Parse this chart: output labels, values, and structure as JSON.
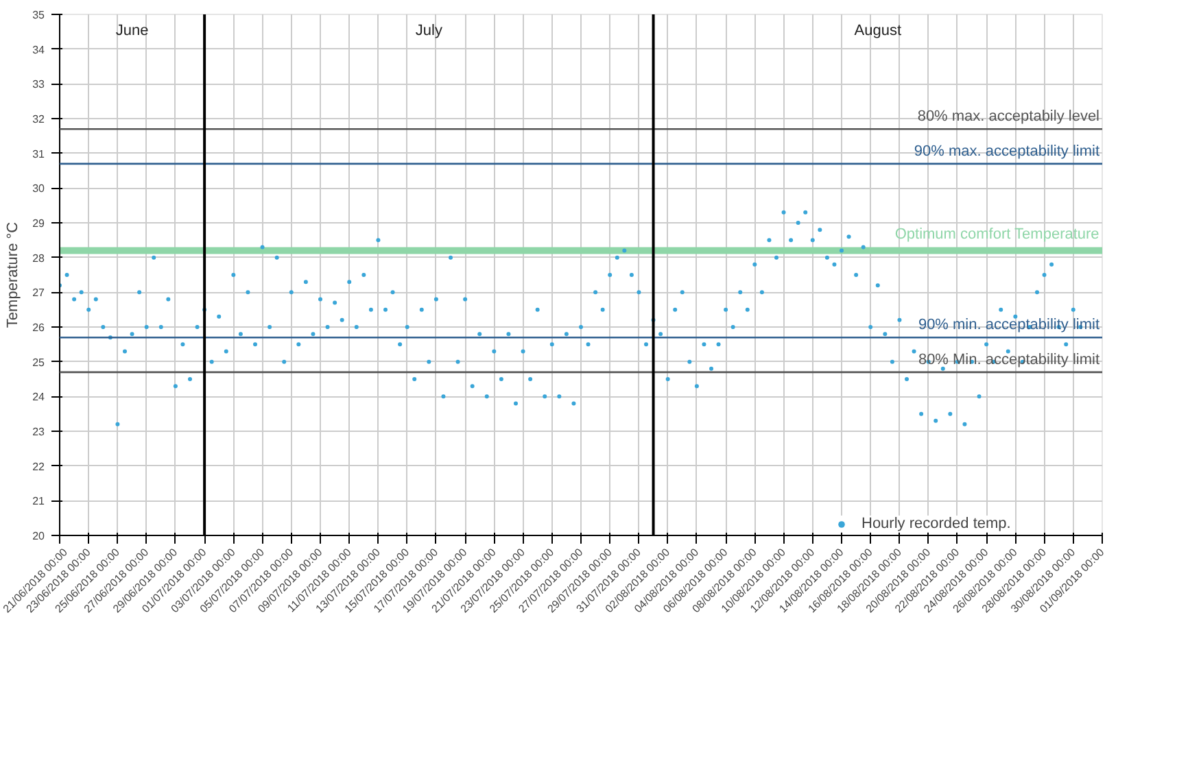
{
  "chart_data": {
    "type": "scatter",
    "ylabel": "Temperature °C",
    "xlim": [
      "2018-06-21",
      "2018-09-01"
    ],
    "ylim": [
      20,
      35
    ],
    "yticks": [
      20,
      21,
      22,
      23,
      24,
      25,
      26,
      27,
      28,
      29,
      30,
      31,
      32,
      33,
      34,
      35
    ],
    "xticks": [
      {
        "value": "2018-06-21",
        "label": "21/06/2018 00:00"
      },
      {
        "value": "2018-06-23",
        "label": "23/06/2018 00:00"
      },
      {
        "value": "2018-06-25",
        "label": "25/06/2018 00:00"
      },
      {
        "value": "2018-06-27",
        "label": "27/06/2018 00:00"
      },
      {
        "value": "2018-06-29",
        "label": "29/06/2018 00:00"
      },
      {
        "value": "2018-07-01",
        "label": "01/07/2018 00:00"
      },
      {
        "value": "2018-07-03",
        "label": "03/07/2018 00:00"
      },
      {
        "value": "2018-07-05",
        "label": "05/07/2018 00:00"
      },
      {
        "value": "2018-07-07",
        "label": "07/07/2018 00:00"
      },
      {
        "value": "2018-07-09",
        "label": "09/07/2018 00:00"
      },
      {
        "value": "2018-07-11",
        "label": "11/07/2018 00:00"
      },
      {
        "value": "2018-07-13",
        "label": "13/07/2018 00:00"
      },
      {
        "value": "2018-07-15",
        "label": "15/07/2018 00:00"
      },
      {
        "value": "2018-07-17",
        "label": "17/07/2018 00:00"
      },
      {
        "value": "2018-07-19",
        "label": "19/07/2018 00:00"
      },
      {
        "value": "2018-07-21",
        "label": "21/07/2018 00:00"
      },
      {
        "value": "2018-07-23",
        "label": "23/07/2018 00:00"
      },
      {
        "value": "2018-07-25",
        "label": "25/07/2018 00:00"
      },
      {
        "value": "2018-07-27",
        "label": "27/07/2018 00:00"
      },
      {
        "value": "2018-07-29",
        "label": "29/07/2018 00:00"
      },
      {
        "value": "2018-07-31",
        "label": "31/07/2018 00:00"
      },
      {
        "value": "2018-08-02",
        "label": "02/08/2018 00:00"
      },
      {
        "value": "2018-08-04",
        "label": "04/08/2018 00:00"
      },
      {
        "value": "2018-08-06",
        "label": "06/08/2018 00:00"
      },
      {
        "value": "2018-08-08",
        "label": "08/08/2018 00:00"
      },
      {
        "value": "2018-08-10",
        "label": "10/08/2018 00:00"
      },
      {
        "value": "2018-08-12",
        "label": "12/08/2018 00:00"
      },
      {
        "value": "2018-08-14",
        "label": "14/08/2018 00:00"
      },
      {
        "value": "2018-08-16",
        "label": "16/08/2018 00:00"
      },
      {
        "value": "2018-08-18",
        "label": "18/08/2018 00:00"
      },
      {
        "value": "2018-08-20",
        "label": "20/08/2018 00:00"
      },
      {
        "value": "2018-08-22",
        "label": "22/08/2018 00:00"
      },
      {
        "value": "2018-08-24",
        "label": "24/08/2018 00:00"
      },
      {
        "value": "2018-08-26",
        "label": "26/08/2018 00:00"
      },
      {
        "value": "2018-08-28",
        "label": "28/08/2018 00:00"
      },
      {
        "value": "2018-08-30",
        "label": "30/08/2018 00:00"
      },
      {
        "value": "2018-09-01",
        "label": "01/09/2018 00:00"
      }
    ],
    "grid": true,
    "legend": "bottom",
    "marker": "circle",
    "series": [
      {
        "name": "Hourly recorded temp.",
        "color": "#3aa6d8",
        "x": [
          "2018-06-21T00:00",
          "2018-06-21T12:00",
          "2018-06-22T00:00",
          "2018-06-22T12:00",
          "2018-06-23T00:00",
          "2018-06-23T12:00",
          "2018-06-24T00:00",
          "2018-06-24T12:00",
          "2018-06-25T00:00",
          "2018-06-25T12:00",
          "2018-06-26T00:00",
          "2018-06-26T12:00",
          "2018-06-27T00:00",
          "2018-06-27T12:00",
          "2018-06-28T00:00",
          "2018-06-28T12:00",
          "2018-06-29T00:00",
          "2018-06-29T12:00",
          "2018-06-30T00:00",
          "2018-06-30T12:00",
          "2018-07-01T00:00",
          "2018-07-01T12:00",
          "2018-07-02T00:00",
          "2018-07-02T12:00",
          "2018-07-03T00:00",
          "2018-07-03T12:00",
          "2018-07-04T00:00",
          "2018-07-04T12:00",
          "2018-07-05T00:00",
          "2018-07-05T12:00",
          "2018-07-06T00:00",
          "2018-07-06T12:00",
          "2018-07-07T00:00",
          "2018-07-07T12:00",
          "2018-07-08T00:00",
          "2018-07-08T12:00",
          "2018-07-09T00:00",
          "2018-07-09T12:00",
          "2018-07-10T00:00",
          "2018-07-10T12:00",
          "2018-07-11T00:00",
          "2018-07-11T12:00",
          "2018-07-12T00:00",
          "2018-07-12T12:00",
          "2018-07-13T00:00",
          "2018-07-13T12:00",
          "2018-07-14T00:00",
          "2018-07-14T12:00",
          "2018-07-15T00:00",
          "2018-07-15T12:00",
          "2018-07-16T00:00",
          "2018-07-16T12:00",
          "2018-07-17T00:00",
          "2018-07-17T12:00",
          "2018-07-18T00:00",
          "2018-07-18T12:00",
          "2018-07-19T00:00",
          "2018-07-19T12:00",
          "2018-07-20T00:00",
          "2018-07-20T12:00",
          "2018-07-21T00:00",
          "2018-07-21T12:00",
          "2018-07-22T00:00",
          "2018-07-22T12:00",
          "2018-07-23T00:00",
          "2018-07-23T12:00",
          "2018-07-24T00:00",
          "2018-07-24T12:00",
          "2018-07-25T00:00",
          "2018-07-25T12:00",
          "2018-07-26T00:00",
          "2018-07-26T12:00",
          "2018-07-27T00:00",
          "2018-07-27T12:00",
          "2018-07-28T00:00",
          "2018-07-28T12:00",
          "2018-07-29T00:00",
          "2018-07-29T12:00",
          "2018-07-30T00:00",
          "2018-07-30T12:00",
          "2018-07-31T00:00",
          "2018-07-31T12:00",
          "2018-08-01T00:00",
          "2018-08-01T12:00",
          "2018-08-02T00:00",
          "2018-08-02T12:00",
          "2018-08-03T00:00",
          "2018-08-03T12:00",
          "2018-08-04T00:00",
          "2018-08-04T12:00",
          "2018-08-05T00:00",
          "2018-08-05T12:00",
          "2018-08-06T00:00",
          "2018-08-06T12:00",
          "2018-08-07T00:00",
          "2018-08-07T12:00",
          "2018-08-08T00:00",
          "2018-08-08T12:00",
          "2018-08-09T00:00",
          "2018-08-09T12:00",
          "2018-08-10T00:00",
          "2018-08-10T12:00",
          "2018-08-11T00:00",
          "2018-08-11T12:00",
          "2018-08-12T00:00",
          "2018-08-12T12:00",
          "2018-08-13T00:00",
          "2018-08-13T12:00",
          "2018-08-14T00:00",
          "2018-08-14T12:00",
          "2018-08-15T00:00",
          "2018-08-15T12:00",
          "2018-08-16T00:00",
          "2018-08-16T12:00",
          "2018-08-17T00:00",
          "2018-08-17T12:00",
          "2018-08-18T00:00",
          "2018-08-18T12:00",
          "2018-08-19T00:00",
          "2018-08-19T12:00",
          "2018-08-20T00:00",
          "2018-08-20T12:00",
          "2018-08-21T00:00",
          "2018-08-21T12:00",
          "2018-08-22T00:00",
          "2018-08-22T12:00",
          "2018-08-23T00:00",
          "2018-08-23T12:00",
          "2018-08-24T00:00",
          "2018-08-24T12:00",
          "2018-08-25T00:00",
          "2018-08-25T12:00",
          "2018-08-26T00:00",
          "2018-08-26T12:00",
          "2018-08-27T00:00",
          "2018-08-27T12:00",
          "2018-08-28T00:00",
          "2018-08-28T12:00",
          "2018-08-29T00:00",
          "2018-08-29T12:00",
          "2018-08-30T00:00",
          "2018-08-30T12:00"
        ],
        "values": [
          27.2,
          27.5,
          26.8,
          27.0,
          26.5,
          26.8,
          26.0,
          25.7,
          23.2,
          25.3,
          25.8,
          27.0,
          26.0,
          28.0,
          26.0,
          26.8,
          24.3,
          25.5,
          24.5,
          26.0,
          26.5,
          25.0,
          26.3,
          25.3,
          27.5,
          25.8,
          27.0,
          25.5,
          28.3,
          26.0,
          28.0,
          25.0,
          27.0,
          25.5,
          27.3,
          25.8,
          26.8,
          26.0,
          26.7,
          26.2,
          27.3,
          26.0,
          27.5,
          26.5,
          28.5,
          26.5,
          27.0,
          25.5,
          26.0,
          24.5,
          26.5,
          25.0,
          26.8,
          24.0,
          28.0,
          25.0,
          26.8,
          24.3,
          25.8,
          24.0,
          25.3,
          24.5,
          25.8,
          23.8,
          25.3,
          24.5,
          26.5,
          24.0,
          25.5,
          24.0,
          25.8,
          23.8,
          26.0,
          25.5,
          27.0,
          26.5,
          27.5,
          28.0,
          28.2,
          27.5,
          27.0,
          25.5,
          26.2,
          25.8,
          24.5,
          26.5,
          27.0,
          25.0,
          24.3,
          25.5,
          24.8,
          25.5,
          26.5,
          26.0,
          27.0,
          26.5,
          27.8,
          27.0,
          28.5,
          28.0,
          29.3,
          28.5,
          29.0,
          29.3,
          28.5,
          28.8,
          28.0,
          27.8,
          28.2,
          28.6,
          27.5,
          28.3,
          26.0,
          27.2,
          25.8,
          25.0,
          26.2,
          24.5,
          25.3,
          23.5,
          25.0,
          23.3,
          24.8,
          23.5,
          25.0,
          23.2,
          25.0,
          24.0,
          25.5,
          25.0,
          26.5,
          25.3,
          26.3,
          25.0,
          26.0,
          27.0,
          27.5,
          27.8,
          26.0,
          25.5,
          26.5,
          26.0
        ]
      }
    ],
    "ref_lines": [
      {
        "axis": "y",
        "value": 31.7,
        "label": "80% max. acceptabily level",
        "color": "#555555"
      },
      {
        "axis": "y",
        "value": 30.7,
        "label": "90% max. acceptability limit",
        "color": "#2f5f8f"
      },
      {
        "axis": "y",
        "value": 25.7,
        "label": "90% min. acceptability limit",
        "color": "#2f5f8f"
      },
      {
        "axis": "y",
        "value": 24.7,
        "label": "80% Min. acceptability limit",
        "color": "#555555"
      },
      {
        "axis": "x",
        "value": "2018-07-01",
        "label": null,
        "color": "#000000"
      },
      {
        "axis": "x",
        "value": "2018-08-01",
        "label": null,
        "color": "#000000"
      }
    ],
    "bands": [
      {
        "axis": "y",
        "from": 28.1,
        "to": 28.3,
        "label": "Optimum comfort Temperature",
        "color": "#8fd6a8"
      }
    ],
    "annotations": [
      "June",
      "July",
      "August"
    ]
  }
}
